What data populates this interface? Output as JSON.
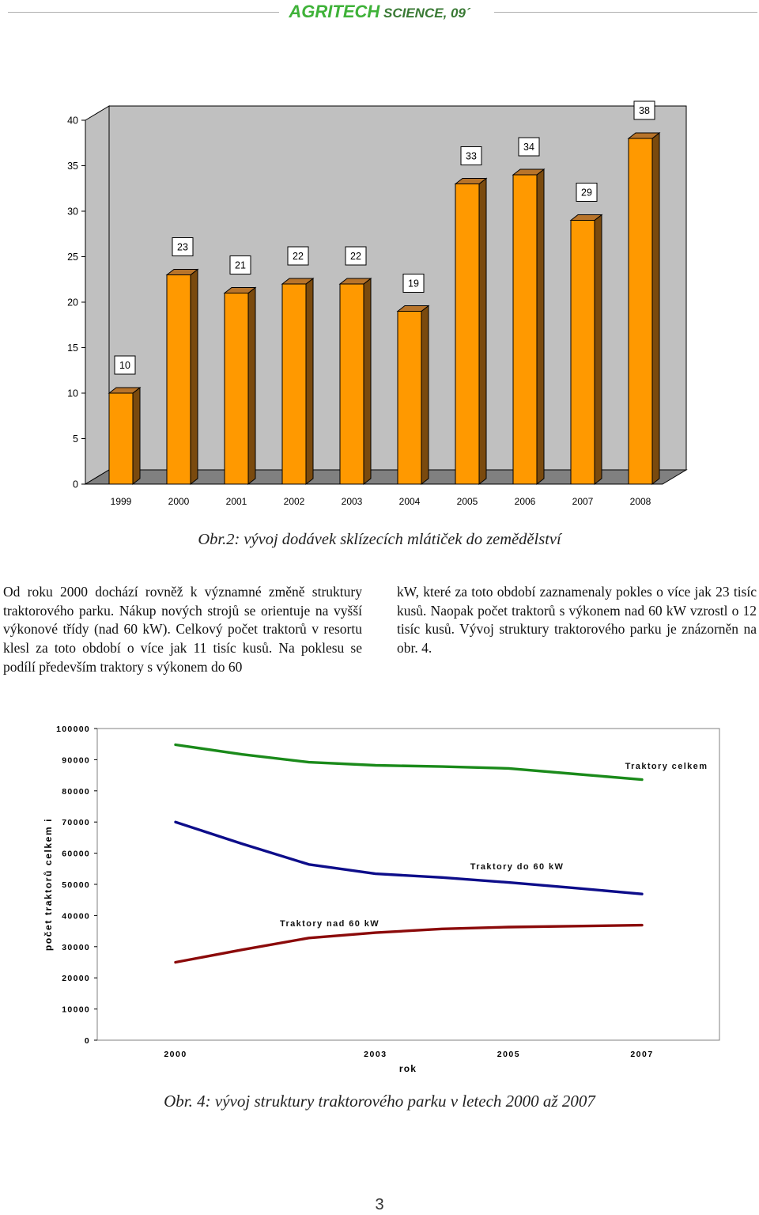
{
  "header": {
    "brand_agri": "AGRI",
    "brand_tech": "TECH",
    "rest": " SCIENCE, 09´"
  },
  "chart_data": [
    {
      "type": "bar",
      "categories": [
        "1999",
        "2000",
        "2001",
        "2002",
        "2003",
        "2004",
        "2005",
        "2006",
        "2007",
        "2008"
      ],
      "values": [
        10,
        23,
        21,
        22,
        22,
        19,
        33,
        34,
        29,
        38
      ],
      "value_labels": [
        "10",
        "23",
        "21",
        "22",
        "22",
        "19",
        "33",
        "34",
        "29",
        "38"
      ],
      "yticks": [
        "0",
        "5",
        "10",
        "15",
        "20",
        "25",
        "30",
        "35",
        "40"
      ],
      "ylim": [
        0,
        40
      ],
      "title": "",
      "xlabel": "",
      "ylabel": "",
      "grid": false,
      "style": "3d",
      "colors": {
        "bar_face": "#ff9900",
        "bar_side": "#7a4a0e",
        "bar_top": "#b8742a",
        "wall": "#c0c0c0",
        "floor": "#808080"
      }
    },
    {
      "type": "line",
      "x": [
        2000,
        2001,
        2002,
        2003,
        2004,
        2005,
        2006,
        2007
      ],
      "xticks": [
        "2000",
        "2003",
        "2005",
        "2007"
      ],
      "yticks": [
        "0",
        "10000",
        "20000",
        "30000",
        "40000",
        "50000",
        "60000",
        "70000",
        "80000",
        "90000",
        "100000"
      ],
      "ylim": [
        0,
        100000
      ],
      "xlabel": "rok",
      "ylabel": "počet traktorů celkem i",
      "title": "",
      "grid": false,
      "series": [
        {
          "name": "Traktory celkem",
          "color": "#1a8a1a",
          "values": [
            94800,
            91700,
            89200,
            88200,
            87800,
            87200,
            85400,
            83600
          ]
        },
        {
          "name": "Traktory do 60 kW",
          "color": "#0d0d8a",
          "values": [
            70000,
            63000,
            56400,
            53400,
            52200,
            50600,
            48800,
            46900
          ]
        },
        {
          "name": "Traktory nad 60 kW",
          "color": "#8b0a0a",
          "values": [
            25000,
            29000,
            32800,
            34500,
            35700,
            36300,
            36600,
            36900
          ]
        }
      ]
    }
  ],
  "captions": {
    "fig2": "Obr.2: vývoj dodávek sklízecích mlátiček do zemědělství",
    "fig4": "Obr. 4: vývoj struktury traktorového parku v letech 2000 až 2007"
  },
  "text": {
    "left_column": "Od roku 2000 dochází rovněž k významné změně struktury traktorového parku. Nákup nových strojů se orientuje na vyšší výkonové třídy (nad 60 kW). Celkový počet traktorů v resortu klesl za toto období o více jak 11 tisíc kusů. Na poklesu se podílí především traktory s výkonem do 60",
    "right_column": "kW, které za toto období zaznamenaly pokles o více jak 23 tisíc kusů. Naopak počet traktorů s výkonem nad 60 kW vzrostl o 12 tisíc kusů. Vývoj struktury traktorového parku je znázorněn na obr. 4."
  },
  "page_number": "3"
}
